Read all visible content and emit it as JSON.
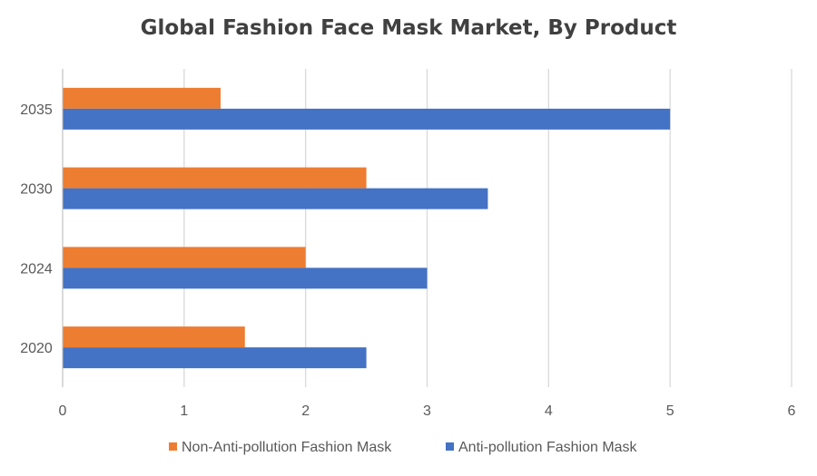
{
  "chart_data": {
    "type": "bar",
    "orientation": "horizontal",
    "title": "Global Fashion Face Mask Market, By Product",
    "categories": [
      "2020",
      "2024",
      "2030",
      "2035"
    ],
    "series": [
      {
        "name": "Non-Anti-pollution Fashion Mask",
        "color": "#ED7D31",
        "values": [
          1.5,
          2.0,
          2.5,
          1.3
        ]
      },
      {
        "name": "Anti-pollution Fashion Mask",
        "color": "#4472C4",
        "values": [
          2.5,
          3.0,
          3.5,
          5.0
        ]
      }
    ],
    "xlim": [
      0,
      6
    ],
    "xticks": [
      0,
      1,
      2,
      3,
      4,
      5,
      6
    ],
    "xlabel": "",
    "ylabel": "",
    "grid": "vertical",
    "legend_position": "bottom"
  }
}
